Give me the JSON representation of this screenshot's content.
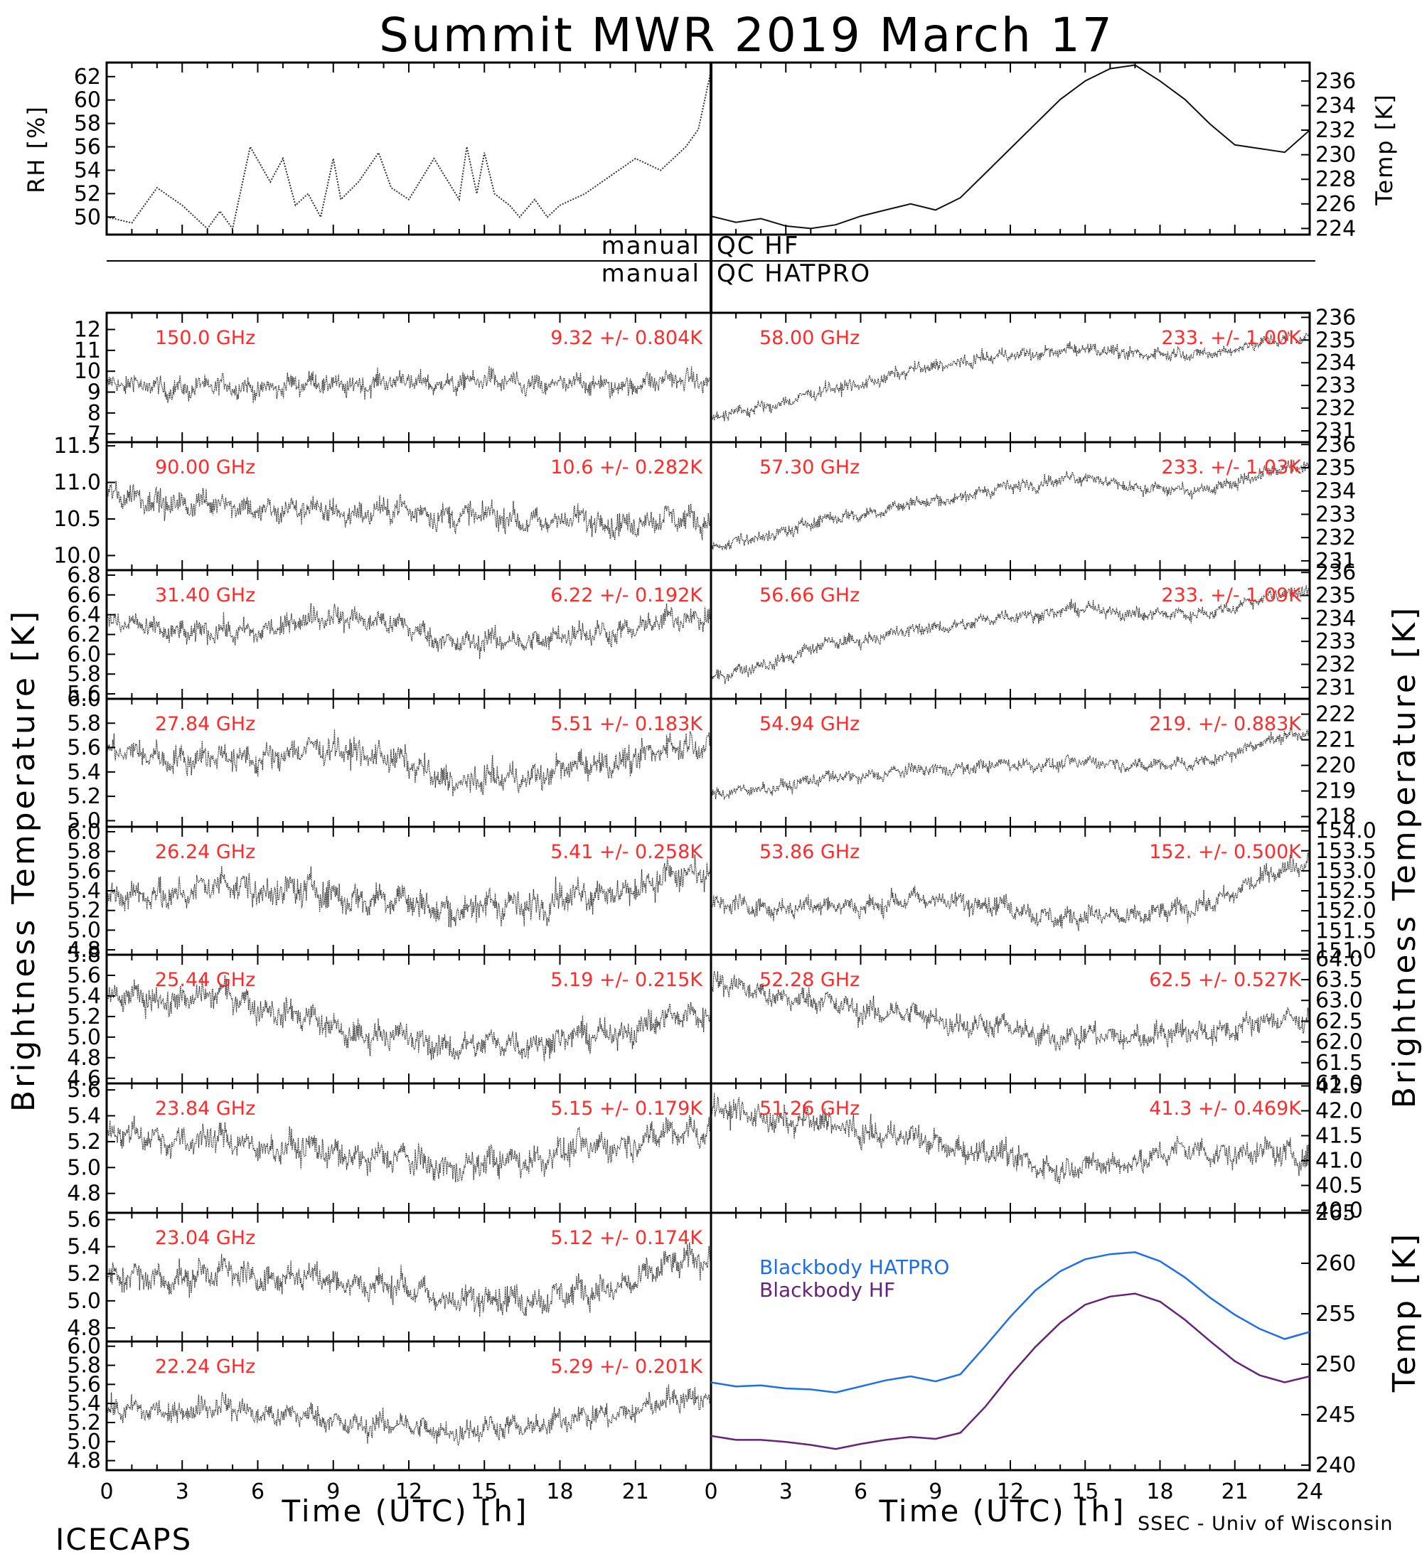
{
  "title": "Summit MWR 2019 March 17",
  "footer": {
    "left": "ICECAPS",
    "right": "SSEC - Univ of Wisconsin"
  },
  "qc_labels": {
    "hf_left": "manual",
    "hf_right": "QC HF",
    "hatpro_left": "manual",
    "hatpro_right": "QC HATPRO"
  },
  "axis_labels": {
    "rh": "RH [%]",
    "temp": "Temp [K]",
    "tb_left": "Brightness Temperature [K]",
    "tb_right": "Brightness Temperature [K]",
    "bb_temp": "Temp [K]",
    "x_left": "Time (UTC) [h]",
    "x_right": "Time (UTC) [h]"
  },
  "colors": {
    "hatpro": "#1e6fe6",
    "hf": "#66237a",
    "stats": "#ff2a2a",
    "data": "#000000"
  },
  "chart_data": [
    {
      "id": "rh",
      "type": "line",
      "style": "dotted",
      "xlim": [
        0,
        24
      ],
      "ylim": [
        48.5,
        63.2
      ],
      "yticks": [
        "50",
        "52",
        "54",
        "56",
        "58",
        "60",
        "62"
      ],
      "x": [
        0,
        1,
        2,
        3,
        4,
        4.5,
        5,
        5.7,
        6.5,
        7,
        7.5,
        8,
        8.5,
        9,
        9.3,
        10,
        10.8,
        11.3,
        12,
        13,
        14,
        14.3,
        14.7,
        15,
        15.4,
        16,
        16.4,
        17,
        17.5,
        18,
        19,
        20,
        21,
        22,
        23,
        23.5,
        24
      ],
      "y": [
        50,
        49.5,
        52.5,
        51,
        49,
        50.5,
        49,
        56,
        53,
        55,
        51,
        52,
        50,
        55,
        51.5,
        53,
        55.5,
        52.5,
        51.5,
        55,
        51.5,
        56,
        52,
        55.5,
        52,
        51,
        50,
        51.5,
        50,
        51,
        52,
        53.5,
        55,
        54,
        56,
        57.5,
        62.5
      ]
    },
    {
      "id": "temp",
      "type": "line",
      "xlim": [
        0,
        24
      ],
      "ylim": [
        223.5,
        237.5
      ],
      "yticks": [
        "224",
        "226",
        "228",
        "230",
        "232",
        "234",
        "236"
      ],
      "x": [
        0,
        1,
        2,
        3,
        4,
        5,
        6,
        7,
        8,
        9,
        10,
        11,
        12,
        13,
        14,
        15,
        16,
        17,
        18,
        19,
        20,
        21,
        22,
        23,
        24
      ],
      "y": [
        225,
        224.5,
        224.8,
        224.2,
        224,
        224.3,
        225,
        225.5,
        226,
        225.5,
        226.5,
        228.5,
        230.5,
        232.5,
        234.5,
        236,
        237,
        237.3,
        236,
        234.5,
        232.5,
        230.8,
        230.5,
        230.2,
        232
      ]
    },
    {
      "id": "ch150",
      "label": "150.0 GHz",
      "stats": "9.32 +/- 0.804K",
      "side": "left",
      "type": "scatter",
      "ylim": [
        6.6,
        12.8
      ],
      "yticks": [
        "7",
        "8",
        "9",
        "10",
        "11",
        "12"
      ],
      "trend": [
        9.3,
        9.2,
        9.4,
        9.5,
        9.3,
        9.6
      ],
      "noise": 0.8
    },
    {
      "id": "ch90",
      "label": "90.00 GHz",
      "stats": "10.6 +/- 0.282K",
      "side": "left",
      "type": "scatter",
      "ylim": [
        9.8,
        11.55
      ],
      "yticks": [
        "10.0",
        "10.5",
        "11.0",
        "11.5"
      ],
      "trend": [
        10.8,
        10.7,
        10.6,
        10.6,
        10.5,
        10.45,
        10.5
      ],
      "noise": 0.28
    },
    {
      "id": "ch3140",
      "label": "31.40 GHz",
      "stats": "6.22 +/- 0.192K",
      "side": "left",
      "type": "scatter",
      "ylim": [
        5.55,
        6.85
      ],
      "yticks": [
        "5.6",
        "5.8",
        "6.0",
        "6.2",
        "6.4",
        "6.6",
        "6.8"
      ],
      "trend": [
        6.3,
        6.2,
        6.4,
        6.1,
        6.2,
        6.4
      ],
      "noise": 0.19
    },
    {
      "id": "ch2784",
      "label": "27.84 GHz",
      "stats": "5.51 +/- 0.183K",
      "side": "left",
      "type": "scatter",
      "ylim": [
        4.95,
        6.0
      ],
      "yticks": [
        "5.0",
        "5.2",
        "5.4",
        "5.6",
        "5.8",
        "6.0"
      ],
      "trend": [
        5.55,
        5.5,
        5.6,
        5.3,
        5.45,
        5.65
      ],
      "noise": 0.18
    },
    {
      "id": "ch2624",
      "label": "26.24 GHz",
      "stats": "5.41 +/- 0.258K",
      "side": "left",
      "type": "scatter",
      "ylim": [
        4.75,
        6.05
      ],
      "yticks": [
        "4.8",
        "5.0",
        "5.2",
        "5.4",
        "5.6",
        "5.8",
        "6.0"
      ],
      "trend": [
        5.3,
        5.45,
        5.35,
        5.2,
        5.35,
        5.6
      ],
      "noise": 0.26
    },
    {
      "id": "ch2544",
      "label": "25.44 GHz",
      "stats": "5.19 +/- 0.215K",
      "side": "left",
      "type": "scatter",
      "ylim": [
        4.55,
        5.8
      ],
      "yticks": [
        "4.6",
        "4.8",
        "5.0",
        "5.2",
        "5.4",
        "5.6",
        "5.8"
      ],
      "trend": [
        5.35,
        5.4,
        5.05,
        4.9,
        5.0,
        5.25
      ],
      "noise": 0.21
    },
    {
      "id": "ch2384",
      "label": "23.84 GHz",
      "stats": "5.15 +/- 0.179K",
      "side": "left",
      "type": "scatter",
      "ylim": [
        4.65,
        5.65
      ],
      "yticks": [
        "4.8",
        "5.0",
        "5.2",
        "5.4",
        "5.6"
      ],
      "trend": [
        5.25,
        5.2,
        5.1,
        5.0,
        5.15,
        5.3
      ],
      "noise": 0.18
    },
    {
      "id": "ch2304",
      "label": "23.04 GHz",
      "stats": "5.12 +/- 0.174K",
      "side": "left",
      "type": "scatter",
      "ylim": [
        4.7,
        5.65
      ],
      "yticks": [
        "4.8",
        "5.0",
        "5.2",
        "5.4",
        "5.6"
      ],
      "trend": [
        5.15,
        5.2,
        5.15,
        5.0,
        5.05,
        5.35
      ],
      "noise": 0.17
    },
    {
      "id": "ch2224",
      "label": "22.24 GHz",
      "stats": "5.29 +/- 0.201K",
      "side": "left",
      "type": "scatter",
      "ylim": [
        4.7,
        6.05
      ],
      "yticks": [
        "4.8",
        "5.0",
        "5.2",
        "5.4",
        "5.6",
        "5.8",
        "6.0"
      ],
      "trend": [
        5.3,
        5.35,
        5.2,
        5.1,
        5.25,
        5.5
      ],
      "noise": 0.2
    },
    {
      "id": "ch5800",
      "label": "58.00 GHz",
      "stats": "233. +/- 1.00K",
      "side": "right",
      "type": "scatter",
      "ylim": [
        230.5,
        236.2
      ],
      "yticks": [
        "231",
        "232",
        "233",
        "234",
        "235",
        "236"
      ],
      "trend": [
        231.5,
        232.8,
        234.0,
        234.6,
        234.3,
        235.2
      ],
      "noise": 0.45
    },
    {
      "id": "ch5730",
      "label": "57.30 GHz",
      "stats": "233. +/- 1.03K",
      "side": "right",
      "type": "scatter",
      "ylim": [
        230.6,
        236.1
      ],
      "yticks": [
        "231",
        "232",
        "233",
        "234",
        "235",
        "236"
      ],
      "trend": [
        231.5,
        232.8,
        233.7,
        234.6,
        233.9,
        235.2
      ],
      "noise": 0.45
    },
    {
      "id": "ch5666",
      "label": "56.66 GHz",
      "stats": "233. +/- 1.09K",
      "side": "right",
      "type": "scatter",
      "ylim": [
        230.5,
        236.1
      ],
      "yticks": [
        "231",
        "232",
        "233",
        "234",
        "235",
        "236"
      ],
      "trend": [
        231.3,
        232.9,
        233.7,
        234.4,
        234.1,
        235.3
      ],
      "noise": 0.45
    },
    {
      "id": "ch5494",
      "label": "54.94 GHz",
      "stats": "219. +/- 0.883K",
      "side": "right",
      "type": "scatter",
      "ylim": [
        217.6,
        222.6
      ],
      "yticks": [
        "218",
        "219",
        "220",
        "221",
        "222"
      ],
      "trend": [
        218.8,
        219.5,
        219.9,
        220.1,
        220.0,
        221.4
      ],
      "noise": 0.4
    },
    {
      "id": "ch5386",
      "label": "53.86 GHz",
      "stats": "152. +/- 0.500K",
      "side": "right",
      "type": "scatter",
      "ylim": [
        150.9,
        154.1
      ],
      "yticks": [
        "151.0",
        "151.5",
        "152.0",
        "152.5",
        "153.0",
        "153.5",
        "154.0"
      ],
      "trend": [
        152.1,
        152.1,
        152.3,
        151.8,
        152.0,
        153.3
      ],
      "noise": 0.4
    },
    {
      "id": "ch5228",
      "label": "52.28 GHz",
      "stats": "62.5 +/- 0.527K",
      "side": "right",
      "type": "scatter",
      "ylim": [
        61.0,
        64.1
      ],
      "yticks": [
        "61.0",
        "61.5",
        "62.0",
        "62.5",
        "63.0",
        "63.5",
        "64.0"
      ],
      "trend": [
        63.4,
        62.9,
        62.5,
        62.1,
        62.2,
        62.6
      ],
      "noise": 0.45
    },
    {
      "id": "ch5126",
      "label": "51.26 GHz",
      "stats": "41.3 +/- 0.469K",
      "side": "right",
      "type": "scatter",
      "ylim": [
        39.95,
        42.55
      ],
      "yticks": [
        "40.0",
        "40.5",
        "41.0",
        "41.5",
        "42.0",
        "42.5"
      ],
      "trend": [
        42.0,
        41.7,
        41.3,
        40.8,
        41.2,
        41.1
      ],
      "noise": 0.4
    },
    {
      "id": "blackbody",
      "type": "line",
      "xlim": [
        0,
        24
      ],
      "ylim": [
        239.5,
        265
      ],
      "yticks": [
        "240",
        "245",
        "250",
        "255",
        "260",
        "265"
      ],
      "series": [
        {
          "name": "Blackbody HATPRO",
          "color": "#1e6fe6",
          "x": [
            0,
            1,
            2,
            3,
            4,
            5,
            6,
            7,
            8,
            9,
            10,
            11,
            12,
            13,
            14,
            15,
            16,
            17,
            18,
            19,
            20,
            21,
            22,
            23,
            24
          ],
          "y": [
            248.2,
            247.8,
            247.9,
            247.6,
            247.5,
            247.2,
            247.8,
            248.4,
            248.8,
            248.3,
            249.0,
            251.8,
            254.7,
            257.3,
            259.2,
            260.4,
            260.9,
            261.1,
            260.2,
            258.6,
            256.6,
            254.9,
            253.5,
            252.5,
            253.2
          ]
        },
        {
          "name": "Blackbody HF",
          "color": "#66237a",
          "x": [
            0,
            1,
            2,
            3,
            4,
            5,
            6,
            7,
            8,
            9,
            10,
            11,
            12,
            13,
            14,
            15,
            16,
            17,
            18,
            19,
            20,
            21,
            22,
            23,
            24
          ],
          "y": [
            242.9,
            242.5,
            242.5,
            242.3,
            242.0,
            241.6,
            242.1,
            242.5,
            242.8,
            242.6,
            243.2,
            245.8,
            248.9,
            251.7,
            254.1,
            255.9,
            256.7,
            257.0,
            256.2,
            254.4,
            252.3,
            250.3,
            248.9,
            248.2,
            248.8
          ]
        }
      ]
    }
  ],
  "xticks": [
    "0",
    "3",
    "6",
    "9",
    "12",
    "15",
    "18",
    "21",
    "0",
    "3",
    "6",
    "9",
    "12",
    "15",
    "18",
    "21",
    "24"
  ]
}
